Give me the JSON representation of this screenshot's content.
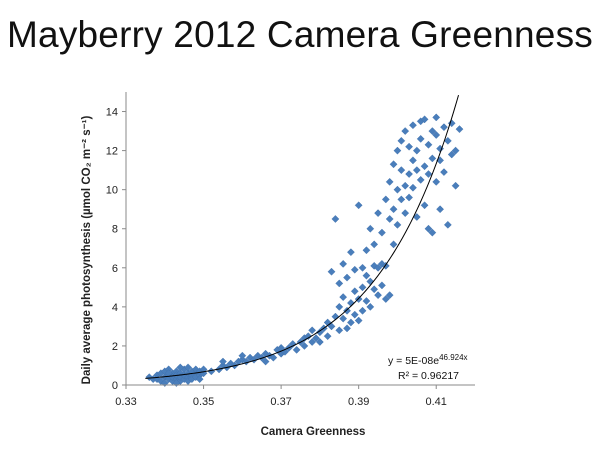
{
  "slide": {
    "title": "Mayberry 2012 Camera Greenness"
  },
  "chart_data": {
    "type": "scatter",
    "xlabel": "Camera Greenness",
    "ylabel": "Daily average photosynthesis (µmol CO₂ m⁻² s⁻¹)",
    "xlim": [
      0.33,
      0.42
    ],
    "ylim": [
      0,
      15
    ],
    "x_ticks": [
      "0.33",
      "0.35",
      "0.37",
      "0.39",
      "0.41"
    ],
    "x_tick_values": [
      0.33,
      0.35,
      0.37,
      0.39,
      0.41
    ],
    "y_ticks": [
      "0",
      "2",
      "4",
      "6",
      "8",
      "10",
      "12",
      "14"
    ],
    "y_tick_values": [
      0,
      2,
      4,
      6,
      8,
      10,
      12,
      14
    ],
    "grid": false,
    "legend": "none",
    "marker": "diamond",
    "series_color": "#4a7ebb",
    "trendline_color": "#000000",
    "trendline": {
      "type": "exponential",
      "a": 5e-08,
      "b": 46.924,
      "equation_label": "y = 5E-08e",
      "equation_exponent": "46.924x",
      "r2_label": "R² = 0.96217"
    },
    "points": [
      [
        0.336,
        0.4
      ],
      [
        0.337,
        0.3
      ],
      [
        0.338,
        0.5
      ],
      [
        0.338,
        0.3
      ],
      [
        0.339,
        0.6
      ],
      [
        0.339,
        0.2
      ],
      [
        0.34,
        0.4
      ],
      [
        0.34,
        0.7
      ],
      [
        0.34,
        0.1
      ],
      [
        0.341,
        0.5
      ],
      [
        0.341,
        0.3
      ],
      [
        0.341,
        0.8
      ],
      [
        0.342,
        0.2
      ],
      [
        0.342,
        0.6
      ],
      [
        0.342,
        0.4
      ],
      [
        0.343,
        0.3
      ],
      [
        0.343,
        0.7
      ],
      [
        0.343,
        0.5
      ],
      [
        0.344,
        0.2
      ],
      [
        0.344,
        0.6
      ],
      [
        0.344,
        0.4
      ],
      [
        0.345,
        0.3
      ],
      [
        0.345,
        0.8
      ],
      [
        0.345,
        0.5
      ],
      [
        0.346,
        0.4
      ],
      [
        0.346,
        0.6
      ],
      [
        0.346,
        0.2
      ],
      [
        0.347,
        0.5
      ],
      [
        0.347,
        0.7
      ],
      [
        0.347,
        0.3
      ],
      [
        0.348,
        0.6
      ],
      [
        0.348,
        0.4
      ],
      [
        0.348,
        0.8
      ],
      [
        0.349,
        0.5
      ],
      [
        0.349,
        0.7
      ],
      [
        0.349,
        0.3
      ],
      [
        0.35,
        0.6
      ],
      [
        0.35,
        0.8
      ],
      [
        0.344,
        0.9
      ],
      [
        0.341,
        0.6
      ],
      [
        0.343,
        0.1
      ],
      [
        0.346,
        0.9
      ],
      [
        0.352,
        0.7
      ],
      [
        0.354,
        0.8
      ],
      [
        0.355,
        1.0
      ],
      [
        0.355,
        1.2
      ],
      [
        0.356,
        0.9
      ],
      [
        0.357,
        1.1
      ],
      [
        0.358,
        1.0
      ],
      [
        0.359,
        1.2
      ],
      [
        0.36,
        1.3
      ],
      [
        0.36,
        1.5
      ],
      [
        0.361,
        1.2
      ],
      [
        0.362,
        1.4
      ],
      [
        0.363,
        1.3
      ],
      [
        0.364,
        1.5
      ],
      [
        0.365,
        1.4
      ],
      [
        0.366,
        1.2
      ],
      [
        0.366,
        1.6
      ],
      [
        0.367,
        1.5
      ],
      [
        0.368,
        1.4
      ],
      [
        0.369,
        1.8
      ],
      [
        0.37,
        1.6
      ],
      [
        0.37,
        1.9
      ],
      [
        0.371,
        1.7
      ],
      [
        0.372,
        1.9
      ],
      [
        0.373,
        2.1
      ],
      [
        0.374,
        1.8
      ],
      [
        0.375,
        2.2
      ],
      [
        0.376,
        2.0
      ],
      [
        0.376,
        2.4
      ],
      [
        0.377,
        2.5
      ],
      [
        0.378,
        2.2
      ],
      [
        0.378,
        2.8
      ],
      [
        0.379,
        2.4
      ],
      [
        0.38,
        2.7
      ],
      [
        0.38,
        2.2
      ],
      [
        0.381,
        2.9
      ],
      [
        0.382,
        2.5
      ],
      [
        0.382,
        3.2
      ],
      [
        0.383,
        3.0
      ],
      [
        0.383,
        5.8
      ],
      [
        0.384,
        3.5
      ],
      [
        0.384,
        8.5
      ],
      [
        0.385,
        2.8
      ],
      [
        0.385,
        4.0
      ],
      [
        0.385,
        5.2
      ],
      [
        0.386,
        3.4
      ],
      [
        0.386,
        4.5
      ],
      [
        0.386,
        6.2
      ],
      [
        0.387,
        3.8
      ],
      [
        0.387,
        2.9
      ],
      [
        0.387,
        5.5
      ],
      [
        0.388,
        4.2
      ],
      [
        0.388,
        3.2
      ],
      [
        0.388,
        6.8
      ],
      [
        0.389,
        4.8
      ],
      [
        0.389,
        3.6
      ],
      [
        0.389,
        5.9
      ],
      [
        0.39,
        4.4
      ],
      [
        0.39,
        3.3
      ],
      [
        0.39,
        9.2
      ],
      [
        0.391,
        5.0
      ],
      [
        0.391,
        3.8
      ],
      [
        0.391,
        6.0
      ],
      [
        0.392,
        5.6
      ],
      [
        0.392,
        4.3
      ],
      [
        0.392,
        6.9
      ],
      [
        0.393,
        5.3
      ],
      [
        0.393,
        4.0
      ],
      [
        0.393,
        8.0
      ],
      [
        0.394,
        6.1
      ],
      [
        0.394,
        4.9
      ],
      [
        0.394,
        7.2
      ],
      [
        0.395,
        6.0
      ],
      [
        0.395,
        4.6
      ],
      [
        0.395,
        8.8
      ],
      [
        0.396,
        6.2
      ],
      [
        0.396,
        5.1
      ],
      [
        0.396,
        7.8
      ],
      [
        0.397,
        6.1
      ],
      [
        0.397,
        4.4
      ],
      [
        0.397,
        9.5
      ],
      [
        0.398,
        4.6
      ],
      [
        0.398,
        8.5
      ],
      [
        0.398,
        10.4
      ],
      [
        0.399,
        7.2
      ],
      [
        0.399,
        9.0
      ],
      [
        0.399,
        11.3
      ],
      [
        0.4,
        8.2
      ],
      [
        0.4,
        10.0
      ],
      [
        0.4,
        12.0
      ],
      [
        0.401,
        9.5
      ],
      [
        0.401,
        11.0
      ],
      [
        0.401,
        12.5
      ],
      [
        0.402,
        10.2
      ],
      [
        0.402,
        8.8
      ],
      [
        0.402,
        13.0
      ],
      [
        0.403,
        10.8
      ],
      [
        0.403,
        12.2
      ],
      [
        0.403,
        9.6
      ],
      [
        0.404,
        11.5
      ],
      [
        0.404,
        13.3
      ],
      [
        0.404,
        10.1
      ],
      [
        0.405,
        12.0
      ],
      [
        0.405,
        8.6
      ],
      [
        0.405,
        11.0
      ],
      [
        0.406,
        13.5
      ],
      [
        0.406,
        10.5
      ],
      [
        0.406,
        12.6
      ],
      [
        0.407,
        11.2
      ],
      [
        0.407,
        9.2
      ],
      [
        0.407,
        13.6
      ],
      [
        0.408,
        12.3
      ],
      [
        0.408,
        10.8
      ],
      [
        0.408,
        8.0
      ],
      [
        0.409,
        13.0
      ],
      [
        0.409,
        11.6
      ],
      [
        0.409,
        7.8
      ],
      [
        0.41,
        12.8
      ],
      [
        0.41,
        10.4
      ],
      [
        0.41,
        13.7
      ],
      [
        0.411,
        11.5
      ],
      [
        0.411,
        9.0
      ],
      [
        0.411,
        12.1
      ],
      [
        0.412,
        13.2
      ],
      [
        0.412,
        10.9
      ],
      [
        0.413,
        12.5
      ],
      [
        0.413,
        8.2
      ],
      [
        0.414,
        11.8
      ],
      [
        0.414,
        13.4
      ],
      [
        0.415,
        12.0
      ],
      [
        0.415,
        10.2
      ],
      [
        0.416,
        13.1
      ]
    ]
  }
}
